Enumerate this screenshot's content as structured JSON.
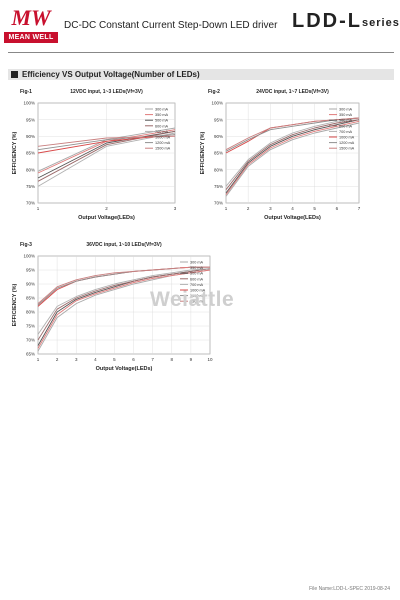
{
  "header": {
    "logo_text": "MW",
    "logo_name": "MEAN WELL",
    "subtitle": "DC-DC Constant Current Step-Down LED driver",
    "model": "LDD-L",
    "model_suffix": "series"
  },
  "section": {
    "title": "Efficiency VS Output Voltage(Number of LEDs)"
  },
  "watermark": "Weiattle",
  "footer": "File Name:LDD-L-SPEC   2019-08-24",
  "colors": {
    "brand": "#c8102e",
    "section_bg": "#e5e5e5"
  },
  "chart_data": [
    {
      "type": "line",
      "fig": "Fig-1",
      "title": "12VDC input, 1~3 LEDs(Vf=3V)",
      "xlabel": "Output Voltage(LEDs)",
      "ylabel": "EFFICIENCY (%)",
      "x": [
        1,
        2,
        3
      ],
      "xticks": [
        1,
        2,
        3
      ],
      "xlim": [
        1,
        3
      ],
      "ylim": [
        70,
        100
      ],
      "yticks": [
        70,
        75,
        80,
        85,
        90,
        95,
        100
      ],
      "grid": true,
      "legend_position": "right",
      "series": [
        {
          "name": "300 mA",
          "color": "#a9a9a9",
          "values": [
            79.5,
            89.0,
            92.5
          ]
        },
        {
          "name": "350 mA",
          "color": "#e07a7a",
          "values": [
            79.0,
            88.5,
            92.0
          ]
        },
        {
          "name": "500 mA",
          "color": "#555555",
          "values": [
            77.5,
            88.0,
            91.5
          ]
        },
        {
          "name": "600 mA",
          "color": "#9b6a6a",
          "values": [
            76.5,
            87.5,
            91.5
          ]
        },
        {
          "name": "700 mA",
          "color": "#b0b0b0",
          "values": [
            75.0,
            87.0,
            91.0
          ]
        },
        {
          "name": "1000 mA",
          "color": "#d84a4a",
          "values": [
            85.0,
            88.5,
            90.5
          ]
        },
        {
          "name": "1200 mA",
          "color": "#909090",
          "values": [
            86.0,
            89.0,
            90.5
          ]
        },
        {
          "name": "1500 mA",
          "color": "#c98080",
          "values": [
            87.0,
            89.5,
            90.0
          ]
        }
      ]
    },
    {
      "type": "line",
      "fig": "Fig-2",
      "title": "24VDC input, 1~7 LEDs(Vf=3V)",
      "xlabel": "Output Voltage(LEDs)",
      "ylabel": "EFFICIENCY (%)",
      "x": [
        1,
        2,
        3,
        4,
        5,
        6,
        7
      ],
      "xticks": [
        1,
        2,
        3,
        4,
        5,
        6,
        7
      ],
      "xlim": [
        1,
        7
      ],
      "ylim": [
        70,
        100
      ],
      "yticks": [
        70,
        75,
        80,
        85,
        90,
        95,
        100
      ],
      "grid": true,
      "legend_position": "right",
      "series": [
        {
          "name": "300 mA",
          "color": "#a9a9a9",
          "values": [
            72.0,
            81.0,
            86.0,
            89.0,
            91.0,
            92.5,
            94.0
          ]
        },
        {
          "name": "350 mA",
          "color": "#e07a7a",
          "values": [
            72.5,
            81.5,
            86.5,
            89.5,
            91.5,
            93.0,
            94.5
          ]
        },
        {
          "name": "500 mA",
          "color": "#555555",
          "values": [
            73.0,
            82.0,
            87.0,
            90.0,
            92.0,
            93.5,
            95.0
          ]
        },
        {
          "name": "600 mA",
          "color": "#9b6a6a",
          "values": [
            74.0,
            82.5,
            87.5,
            90.5,
            92.5,
            94.0,
            95.0
          ]
        },
        {
          "name": "700 mA",
          "color": "#b0b0b0",
          "values": [
            75.0,
            83.0,
            88.0,
            91.0,
            93.0,
            94.5,
            95.5
          ]
        },
        {
          "name": "1000 mA",
          "color": "#d84a4a",
          "values": [
            85.0,
            88.5,
            92.5,
            93.5,
            94.5,
            95.0,
            95.5
          ]
        },
        {
          "name": "1200 mA",
          "color": "#909090",
          "values": [
            85.5,
            89.0,
            92.0,
            93.0,
            94.0,
            95.0,
            95.5
          ]
        },
        {
          "name": "1500 mA",
          "color": "#c98080",
          "values": [
            86.0,
            89.5,
            92.5,
            93.5,
            94.5,
            95.0,
            95.5
          ]
        }
      ]
    },
    {
      "type": "line",
      "fig": "Fig-3",
      "title": "36VDC input, 1~10 LEDs(Vf=3V)",
      "xlabel": "Output Voltage(LEDs)",
      "ylabel": "EFFICIENCY (%)",
      "x": [
        1,
        2,
        3,
        4,
        5,
        6,
        7,
        8,
        9,
        10
      ],
      "xticks": [
        1,
        2,
        3,
        4,
        5,
        6,
        7,
        8,
        9,
        10
      ],
      "xlim": [
        1,
        10
      ],
      "ylim": [
        65,
        100
      ],
      "yticks": [
        65,
        70,
        75,
        80,
        85,
        90,
        95,
        100
      ],
      "grid": true,
      "legend_position": "right",
      "series": [
        {
          "name": "300 mA",
          "color": "#a9a9a9",
          "values": [
            66.0,
            78.0,
            83.0,
            86.0,
            88.0,
            90.0,
            91.5,
            93.0,
            94.0,
            95.0
          ]
        },
        {
          "name": "350 mA",
          "color": "#e07a7a",
          "values": [
            67.0,
            79.0,
            84.0,
            86.5,
            88.5,
            90.5,
            92.0,
            93.0,
            94.0,
            95.0
          ]
        },
        {
          "name": "500 mA",
          "color": "#555555",
          "values": [
            68.0,
            80.0,
            84.5,
            87.0,
            89.0,
            91.0,
            92.5,
            93.5,
            94.5,
            95.5
          ]
        },
        {
          "name": "600 mA",
          "color": "#9b6a6a",
          "values": [
            70.0,
            81.0,
            85.0,
            87.5,
            89.5,
            91.0,
            92.5,
            93.5,
            94.5,
            95.5
          ]
        },
        {
          "name": "700 mA",
          "color": "#b0b0b0",
          "values": [
            72.0,
            82.0,
            85.5,
            88.0,
            90.0,
            91.5,
            93.0,
            94.0,
            95.0,
            95.5
          ]
        },
        {
          "name": "1000 mA",
          "color": "#d84a4a",
          "values": [
            82.0,
            88.0,
            91.0,
            92.5,
            93.5,
            94.5,
            95.0,
            95.5,
            96.0,
            96.0
          ]
        },
        {
          "name": "1200 mA",
          "color": "#909090",
          "values": [
            82.5,
            88.5,
            91.0,
            92.5,
            93.5,
            94.5,
            95.0,
            95.5,
            96.0,
            96.0
          ]
        },
        {
          "name": "1500 mA",
          "color": "#c98080",
          "values": [
            83.0,
            89.0,
            91.5,
            93.0,
            94.0,
            94.5,
            95.0,
            95.5,
            96.0,
            96.0
          ]
        }
      ]
    }
  ]
}
